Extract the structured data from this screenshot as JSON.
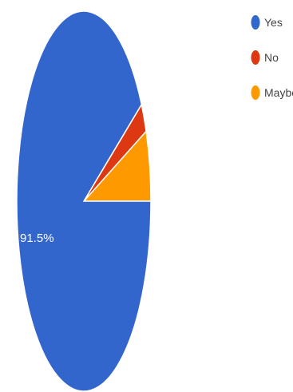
{
  "chart_data": {
    "type": "pie",
    "title": "",
    "categories": [
      "Yes",
      "No",
      "Maybe"
    ],
    "values": [
      91.5,
      2.5,
      6.0
    ],
    "colors": [
      "#3366cc",
      "#dc3912",
      "#ff9900"
    ],
    "slice_labels": [
      "91.5%",
      "",
      ""
    ],
    "legend_position": "right"
  }
}
